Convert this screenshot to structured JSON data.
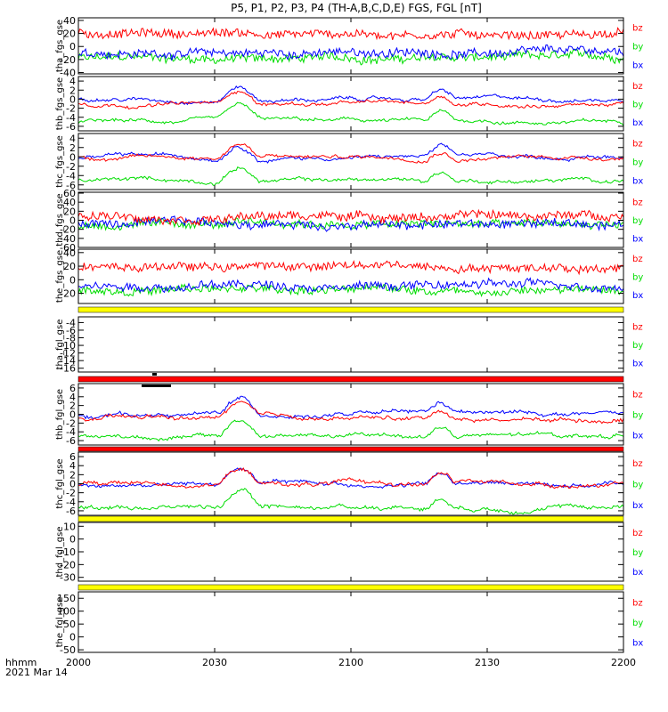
{
  "title": "P5, P1, P2, P3, P4 (TH-A,B,C,D,E) FGS, FGL [nT]",
  "colors": {
    "bx": "#0000ff",
    "by": "#00dd00",
    "bz": "#ff0000",
    "yellow": "#ffff00",
    "flag_red": "#ff0000",
    "axis": "#000000"
  },
  "time_axis": {
    "tick_labels": [
      "2000",
      "2030",
      "2100",
      "2130",
      "2200"
    ],
    "corner_label_1": "hhmm",
    "corner_label_2": "2021 Mar 14"
  },
  "chart_data": [
    {
      "panel": "tha_fgs_gse",
      "type": "line",
      "ylabel": "tha_fgs_gse",
      "ticks": [
        40,
        20,
        0,
        -20,
        -40
      ],
      "ylim": [
        -42,
        44
      ],
      "legend": [
        "bz",
        "by",
        "bx"
      ],
      "levels": {
        "bz": 20,
        "by": -18,
        "bx": -10
      },
      "has_data": true
    },
    {
      "panel": "thb_fgs_gse",
      "type": "line",
      "ylabel": "thb_fgs_gse",
      "ticks": [
        4,
        2,
        0,
        -2,
        -4,
        -6
      ],
      "ylim": [
        -7,
        5
      ],
      "legend": [
        "bz",
        "by",
        "bx"
      ],
      "levels": {
        "bz": -1,
        "by": -5,
        "bx": 0
      },
      "has_data": true
    },
    {
      "panel": "thc_fgs_gse",
      "type": "line",
      "ylabel": "thc_fgs_gse",
      "ticks": [
        4,
        2,
        0,
        -2,
        -4,
        -6
      ],
      "ylim": [
        -7,
        5
      ],
      "legend": [
        "bz",
        "by",
        "bx"
      ],
      "levels": {
        "bz": 0,
        "by": -5,
        "bx": 0
      },
      "has_data": true
    },
    {
      "panel": "thd_fgs_gse",
      "type": "line",
      "ylabel": "thd_fgs_gse",
      "ticks": [
        60,
        40,
        20,
        0,
        -20,
        -40,
        -60
      ],
      "ylim": [
        -60,
        62
      ],
      "legend": [
        "bz",
        "by",
        "bx"
      ],
      "levels": {
        "bz": 10,
        "by": -10,
        "bx": -8
      },
      "has_data": true
    },
    {
      "panel": "the_fgs_gse",
      "type": "line",
      "ylabel": "the_fgs_gse",
      "ticks": [
        40,
        20,
        0,
        -20
      ],
      "ylim": [
        -35,
        45
      ],
      "legend": [
        "bz",
        "by",
        "bx"
      ],
      "levels": {
        "bz": 20,
        "by": -15,
        "bx": -8
      },
      "has_data": true
    },
    {
      "panel": "tha_fgl_gse",
      "type": "line",
      "ylabel": "tha_fgl_gse",
      "ticks": [
        -4,
        -6,
        -8,
        -10,
        -12,
        -14,
        -16
      ],
      "ylim": [
        -17,
        -2.5
      ],
      "legend": [
        "bz",
        "by",
        "bx"
      ],
      "has_data": false
    },
    {
      "panel": "thb_fgl_gse",
      "type": "line",
      "ylabel": "thb_fgl_gse",
      "ticks": [
        6,
        4,
        2,
        0,
        -2,
        -4,
        -6
      ],
      "ylim": [
        -7,
        7
      ],
      "legend": [
        "bz",
        "by",
        "bx"
      ],
      "levels": {
        "bz": -1,
        "by": -5,
        "bx": 0
      },
      "has_data": true
    },
    {
      "panel": "thc_fgl_gse",
      "type": "line",
      "ylabel": "thc_fgl_gse",
      "ticks": [
        6,
        4,
        2,
        0,
        -2,
        -4,
        -6
      ],
      "ylim": [
        -7,
        7
      ],
      "legend": [
        "bz",
        "by",
        "bx"
      ],
      "levels": {
        "bz": 0,
        "by": -5,
        "bx": 0
      },
      "has_data": true
    },
    {
      "panel": "thd_fgl_gse",
      "type": "line",
      "ylabel": "thd_fgl_gse",
      "ticks": [
        10,
        0,
        -10,
        -20,
        -30
      ],
      "ylim": [
        -33,
        13
      ],
      "legend": [
        "bz",
        "by",
        "bx"
      ],
      "has_data": false
    },
    {
      "panel": "the_fgl_gse",
      "type": "line",
      "ylabel": "the_fgl_gse",
      "ticks": [
        150,
        100,
        50,
        0,
        -50
      ],
      "ylim": [
        -60,
        175
      ],
      "legend": [
        "bz",
        "by",
        "bx"
      ],
      "has_data": false
    }
  ]
}
